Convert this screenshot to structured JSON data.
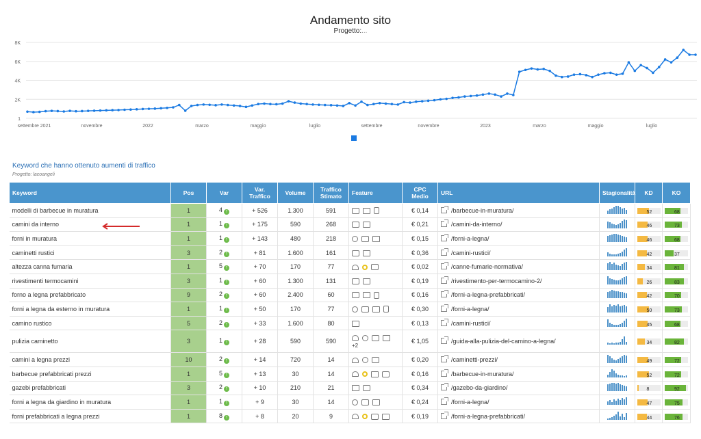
{
  "header": {
    "title": "Andamento sito",
    "project_label": "Progetto:",
    "project_value": "..."
  },
  "chart_data": {
    "type": "line",
    "y_ticks": [
      "8K",
      "6K",
      "4K",
      "2K",
      "1"
    ],
    "ylim": [
      1,
      8000
    ],
    "x_ticks": [
      "settembre 2021",
      "novembre",
      "2022",
      "marzo",
      "maggio",
      "luglio",
      "settembre",
      "novembre",
      "2023",
      "marzo",
      "maggio",
      "luglio"
    ],
    "grid": true,
    "series_color": "#1a7ae2",
    "values": [
      700,
      650,
      680,
      750,
      780,
      760,
      720,
      780,
      740,
      760,
      780,
      800,
      820,
      840,
      860,
      870,
      900,
      920,
      950,
      980,
      1000,
      1020,
      1060,
      1100,
      1150,
      1400,
      800,
      1300,
      1400,
      1450,
      1420,
      1380,
      1450,
      1400,
      1350,
      1300,
      1200,
      1350,
      1500,
      1550,
      1500,
      1480,
      1550,
      1800,
      1650,
      1550,
      1500,
      1450,
      1420,
      1400,
      1380,
      1350,
      1300,
      1600,
      1350,
      1750,
      1400,
      1500,
      1600,
      1550,
      1500,
      1450,
      1700,
      1650,
      1750,
      1800,
      1850,
      1900,
      2000,
      2050,
      2150,
      2200,
      2300,
      2350,
      2400,
      2500,
      2600,
      2500,
      2300,
      2600,
      2450,
      4900,
      5100,
      5250,
      5150,
      5200,
      5000,
      4500,
      4350,
      4400,
      4600,
      4650,
      4550,
      4350,
      4600,
      4750,
      4800,
      4600,
      4700,
      5900,
      5000,
      5600,
      5300,
      4800,
      5400,
      6200,
      5900,
      6400,
      7200,
      6700,
      6700
    ]
  },
  "section": {
    "title": "Keyword che hanno ottenuto aumenti di traffico",
    "project": "Progetto: lacoangeli"
  },
  "table": {
    "headers": {
      "keyword": "Keyword",
      "pos": "Pos",
      "var": "Var",
      "var_traffic_1": "Var.",
      "var_traffic_2": "Traffico",
      "volume": "Volume",
      "traffic_1": "Traffico",
      "traffic_2": "Stimato",
      "feature": "Feature",
      "cpc_1": "CPC",
      "cpc_2": "Medio",
      "url": "URL",
      "season": "Stagionalità",
      "kd": "KD",
      "ko": "KO"
    },
    "rows": [
      {
        "kw": "modelli di barbecue in muratura",
        "pos": "1",
        "var": "4",
        "vt": "+ 526",
        "vol": "1.300",
        "tr": "591",
        "cpc": "€ 0,14",
        "url": "/barbecue-in-muratura/",
        "kd": 52,
        "ko": 68,
        "feat": [
          "chat",
          "img",
          "list"
        ],
        "more": "",
        "spark": [
          5,
          7,
          8,
          10,
          12,
          12,
          10,
          8,
          9,
          6
        ]
      },
      {
        "kw": "camini da interno",
        "pos": "1",
        "var": "1",
        "vt": "+ 175",
        "vol": "590",
        "tr": "268",
        "cpc": "€ 0,21",
        "url": "/camini-da-interno/",
        "kd": 46,
        "ko": 73,
        "feat": [
          "chat",
          "img"
        ],
        "more": "",
        "spark": [
          10,
          9,
          7,
          6,
          5,
          6,
          8,
          11,
          13,
          12
        ]
      },
      {
        "kw": "forni in muratura",
        "pos": "1",
        "var": "1",
        "vt": "+ 143",
        "vol": "480",
        "tr": "218",
        "cpc": "€ 0,15",
        "url": "/forni-a-legna/",
        "kd": 46,
        "ko": 68,
        "feat": [
          "site",
          "chat",
          "img"
        ],
        "more": "",
        "spark": [
          9,
          10,
          11,
          12,
          12,
          11,
          10,
          9,
          8,
          7
        ]
      },
      {
        "kw": "caminetti rustici",
        "pos": "3",
        "var": "2",
        "vt": "+ 81",
        "vol": "1.600",
        "tr": "161",
        "cpc": "€ 0,36",
        "url": "/camini-rustici/",
        "kd": 42,
        "ko": 37,
        "feat": [
          "chat",
          "img"
        ],
        "more": "",
        "spark": [
          6,
          4,
          3,
          3,
          3,
          4,
          5,
          7,
          10,
          12
        ]
      },
      {
        "kw": "altezza canna fumaria",
        "pos": "1",
        "var": "5",
        "vt": "+ 70",
        "vol": "170",
        "tr": "77",
        "cpc": "€ 0,02",
        "url": "/canne-fumarie-normativa/",
        "kd": 34,
        "ko": 81,
        "feat": [
          "dish",
          "award",
          "chat"
        ],
        "more": "",
        "spark": [
          10,
          12,
          9,
          11,
          8,
          7,
          6,
          9,
          11,
          12
        ]
      },
      {
        "kw": "rivestimenti termocamini",
        "pos": "3",
        "var": "1",
        "vt": "+ 60",
        "vol": "1.300",
        "tr": "131",
        "cpc": "€ 0,19",
        "url": "/rivestimento-per-termocamino-2/",
        "kd": 26,
        "ko": 83,
        "feat": [
          "chat",
          "img"
        ],
        "more": "",
        "spark": [
          12,
          9,
          8,
          7,
          6,
          6,
          7,
          9,
          11,
          12
        ]
      },
      {
        "kw": "forno a legna prefabbricato",
        "pos": "9",
        "var": "2",
        "vt": "+ 60",
        "vol": "2.400",
        "tr": "60",
        "cpc": "€ 0,16",
        "url": "/forni-a-legna-prefabbricati/",
        "kd": 42,
        "ko": 70,
        "feat": [
          "chat",
          "img",
          "list"
        ],
        "more": "",
        "spark": [
          9,
          10,
          12,
          11,
          10,
          10,
          9,
          9,
          8,
          7
        ]
      },
      {
        "kw": "forni a legna da esterno in muratura",
        "pos": "1",
        "var": "1",
        "vt": "+ 50",
        "vol": "170",
        "tr": "77",
        "cpc": "€ 0,30",
        "url": "/forni-a-legna/",
        "kd": 50,
        "ko": 73,
        "feat": [
          "site",
          "chat",
          "img",
          "list"
        ],
        "more": "",
        "spark": [
          8,
          12,
          9,
          11,
          10,
          12,
          9,
          10,
          11,
          9
        ]
      },
      {
        "kw": "camino rustico",
        "pos": "5",
        "var": "2",
        "vt": "+ 33",
        "vol": "1.600",
        "tr": "80",
        "cpc": "€ 0,13",
        "url": "/camini-rustici/",
        "kd": 45,
        "ko": 68,
        "feat": [
          "img"
        ],
        "more": "",
        "spark": [
          11,
          6,
          4,
          3,
          3,
          3,
          4,
          6,
          9,
          12
        ]
      },
      {
        "kw": "pulizia caminetto",
        "pos": "3",
        "var": "1",
        "vt": "+ 28",
        "vol": "590",
        "tr": "590",
        "cpc": "€ 1,05",
        "url": "/guida-alla-pulizia-del-camino-a-legna/",
        "kd": 34,
        "ko": 82,
        "feat": [
          "dish",
          "site",
          "chat",
          "img"
        ],
        "more": "+2",
        "spark": [
          3,
          2,
          3,
          2,
          3,
          3,
          4,
          8,
          12,
          4
        ],
        "tall": true
      },
      {
        "kw": "camini a legna prezzi",
        "pos": "10",
        "var": "2",
        "vt": "+ 14",
        "vol": "720",
        "tr": "14",
        "cpc": "€ 0,20",
        "url": "/caminetti-prezzi/",
        "kd": 49,
        "ko": 72,
        "feat": [
          "dish",
          "site",
          "chat"
        ],
        "more": "",
        "spark": [
          12,
          10,
          7,
          5,
          4,
          6,
          8,
          10,
          12,
          11
        ]
      },
      {
        "kw": "barbecue prefabbricati prezzi",
        "pos": "1",
        "var": "5",
        "vt": "+ 13",
        "vol": "30",
        "tr": "14",
        "cpc": "€ 0,16",
        "url": "/barbecue-in-muratura/",
        "kd": 52,
        "ko": 72,
        "feat": [
          "dish",
          "award",
          "img",
          "chat"
        ],
        "more": "",
        "spark": [
          4,
          8,
          12,
          10,
          6,
          4,
          3,
          3,
          2,
          3
        ]
      },
      {
        "kw": "gazebi prefabbricati",
        "pos": "3",
        "var": "2",
        "vt": "+ 10",
        "vol": "210",
        "tr": "21",
        "cpc": "€ 0,34",
        "url": "/gazebo-da-giardino/",
        "kd": 8,
        "ko": 92,
        "feat": [
          "img",
          "chat"
        ],
        "more": "",
        "spark": [
          10,
          11,
          12,
          12,
          11,
          12,
          10,
          9,
          8,
          7
        ]
      },
      {
        "kw": "forni a legna da giardino in muratura",
        "pos": "1",
        "var": "1",
        "vt": "+ 9",
        "vol": "30",
        "tr": "14",
        "cpc": "€ 0,24",
        "url": "/forni-a-legna/",
        "kd": 47,
        "ko": 75,
        "feat": [
          "site",
          "chat",
          "img"
        ],
        "more": "",
        "spark": [
          5,
          7,
          4,
          8,
          6,
          9,
          7,
          10,
          8,
          11
        ]
      },
      {
        "kw": "forni prefabbricati a legna prezzi",
        "pos": "1",
        "var": "8",
        "vt": "+ 8",
        "vol": "20",
        "tr": "9",
        "cpc": "€ 0,19",
        "url": "/forni-a-legna-prefabbricati/",
        "kd": 44,
        "ko": 76,
        "feat": [
          "dish",
          "award",
          "chat",
          "img"
        ],
        "more": "",
        "spark": [
          2,
          3,
          4,
          6,
          8,
          12,
          5,
          9,
          4,
          10
        ]
      }
    ]
  },
  "colors": {
    "pos_bg": "#a8d08d",
    "kd_fill": "#f4b942",
    "ko_fill": "#6ab43a",
    "header_bg": "#4a95cd"
  }
}
